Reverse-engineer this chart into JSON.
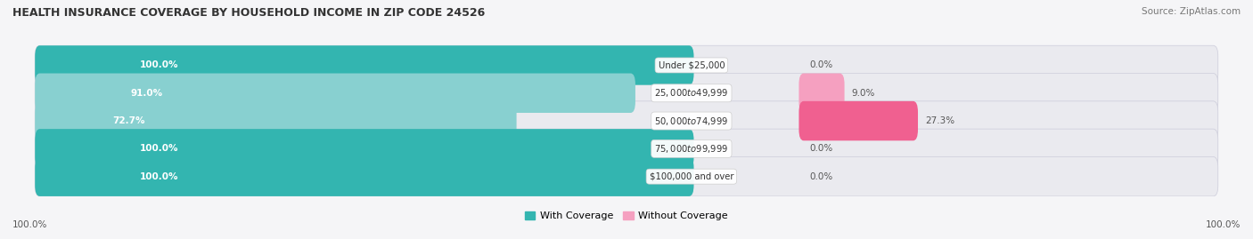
{
  "title": "HEALTH INSURANCE COVERAGE BY HOUSEHOLD INCOME IN ZIP CODE 24526",
  "source": "Source: ZipAtlas.com",
  "categories": [
    "Under $25,000",
    "$25,000 to $49,999",
    "$50,000 to $74,999",
    "$75,000 to $99,999",
    "$100,000 and over"
  ],
  "with_coverage": [
    100.0,
    91.0,
    72.7,
    100.0,
    100.0
  ],
  "without_coverage": [
    0.0,
    9.0,
    27.3,
    0.0,
    0.0
  ],
  "color_with": "#33b5b0",
  "color_without": "#f06090",
  "color_without_light": "#f5a0c0",
  "color_with_light": "#88d0d0",
  "bg_row": "#e8e8ec",
  "bg_color": "#f5f5f7",
  "figsize": [
    14.06,
    2.69
  ],
  "dpi": 100,
  "legend_with": "With Coverage",
  "legend_without": "Without Coverage",
  "total": 100.0,
  "left_label": "100.0%",
  "right_label": "100.0%"
}
